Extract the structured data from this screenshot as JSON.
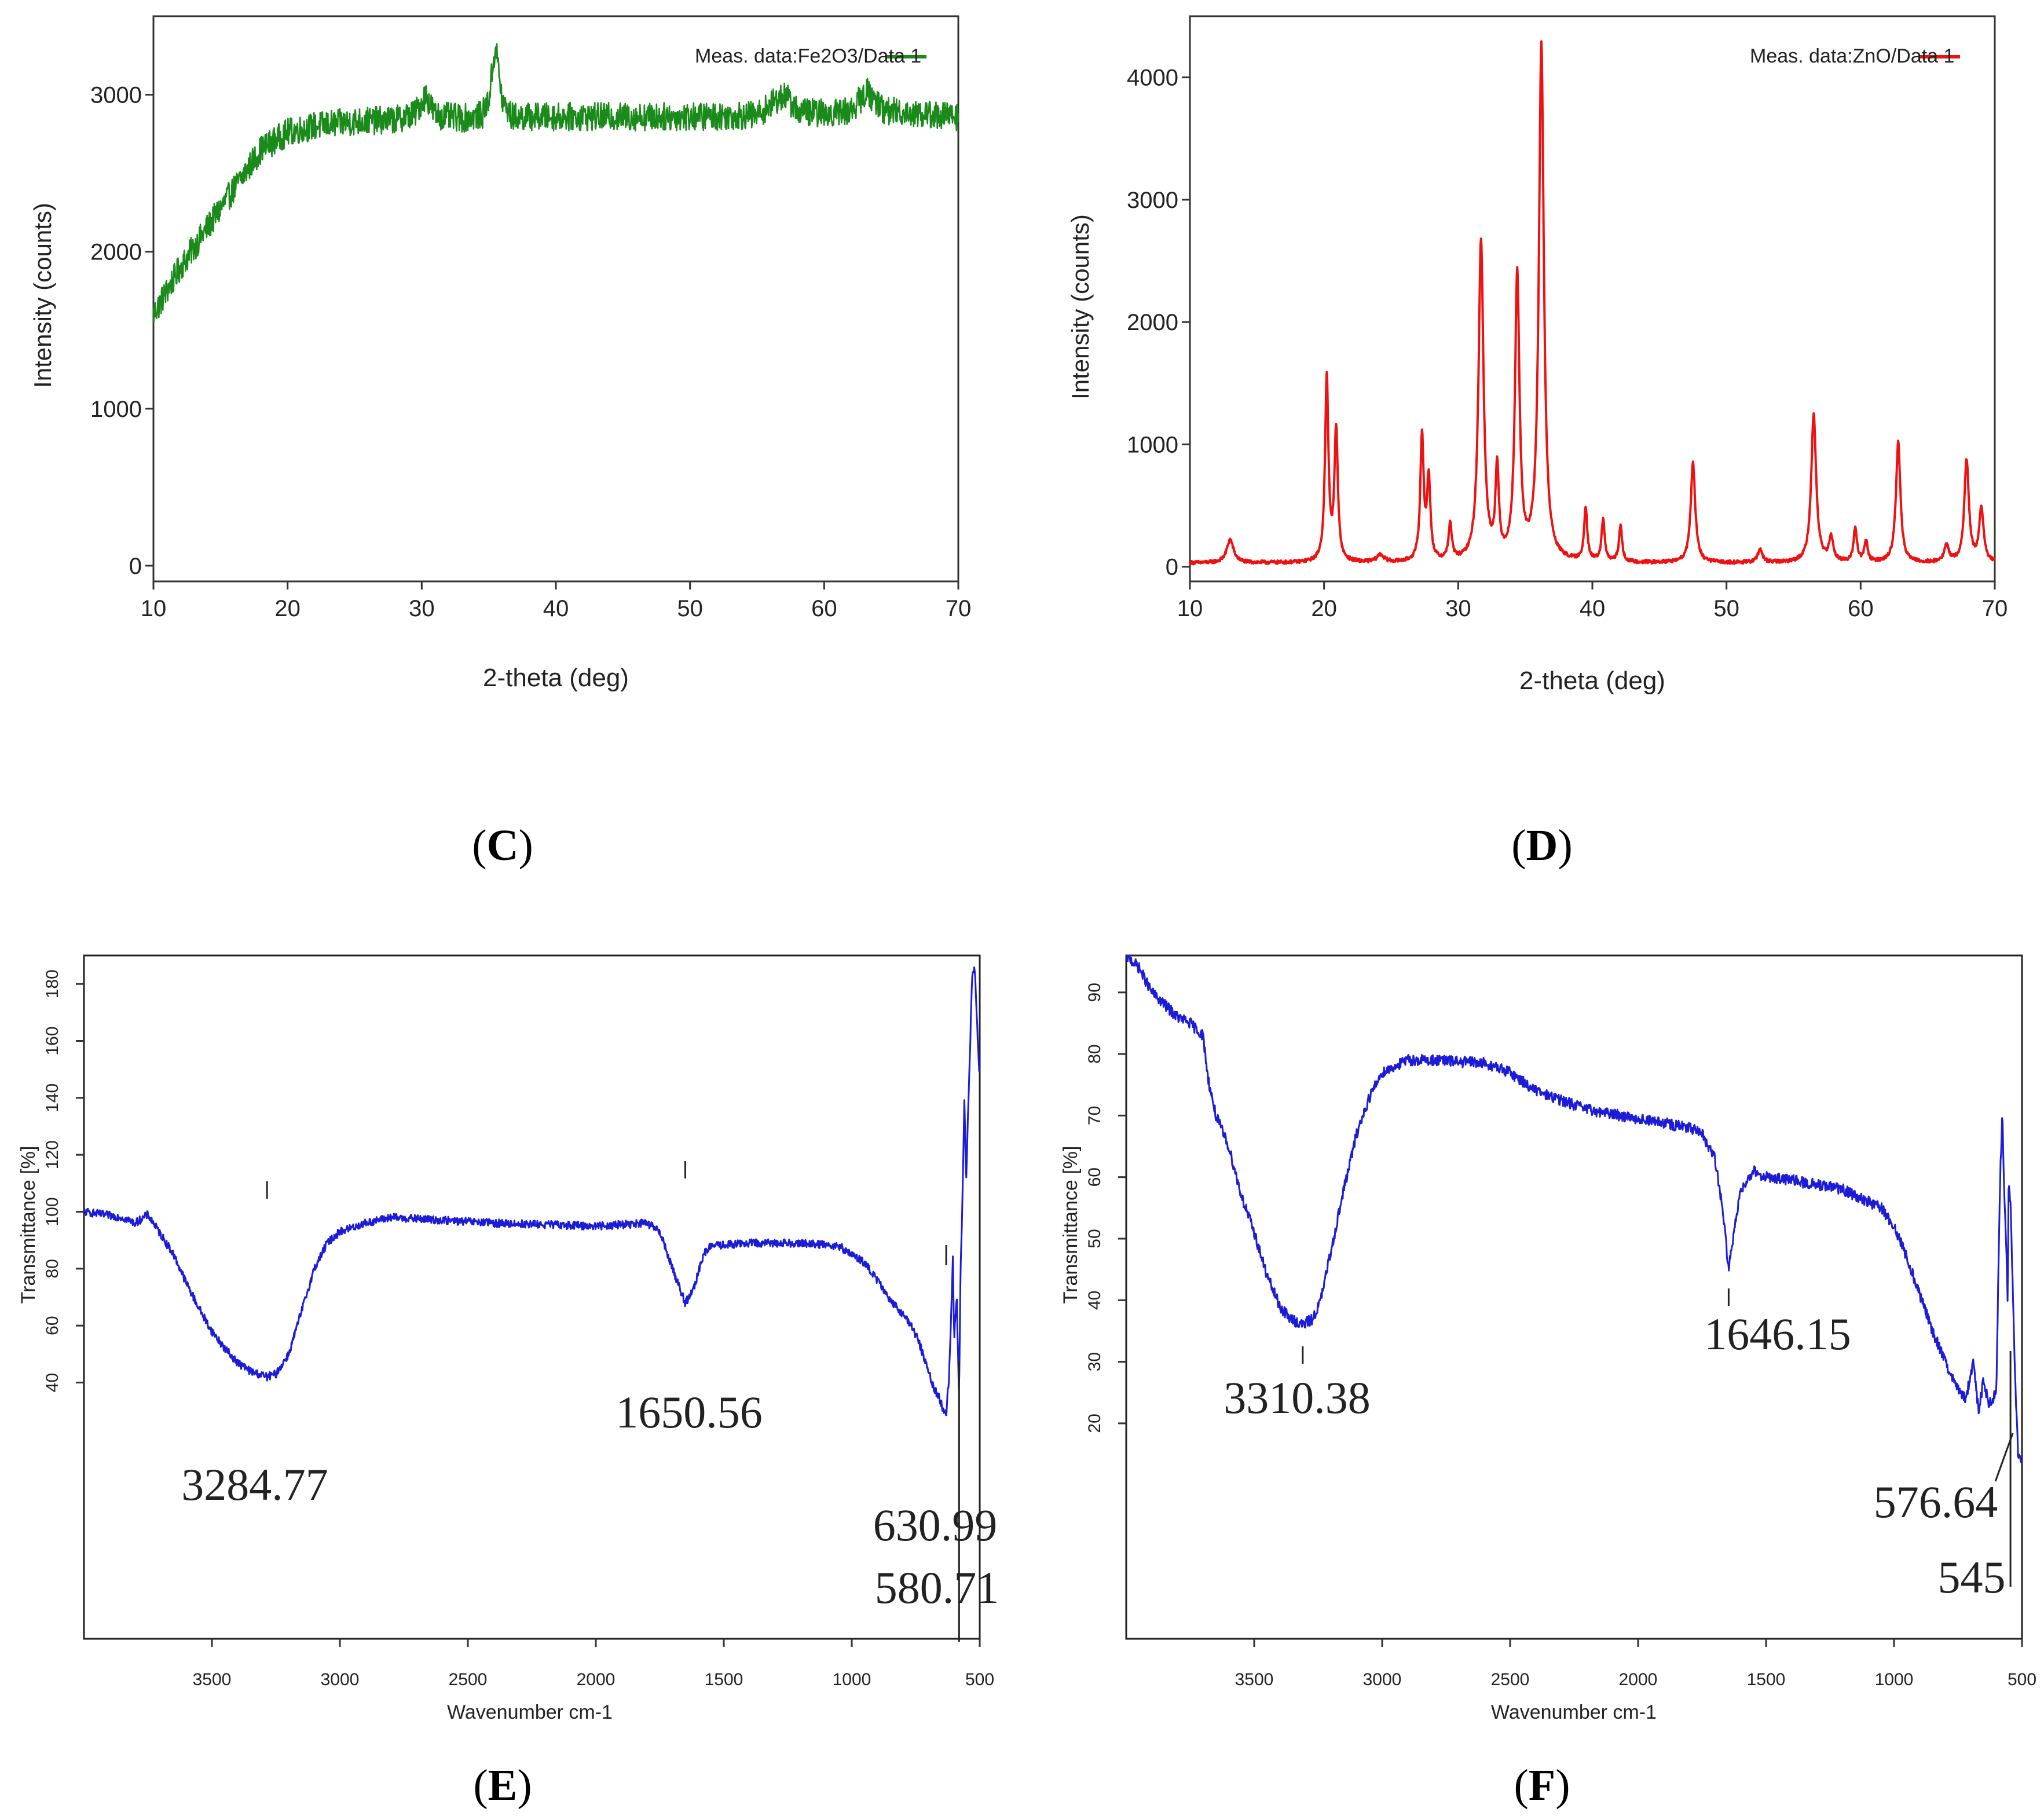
{
  "chart_data": [
    {
      "type": "line",
      "panel": "C",
      "legend": "Meas. data:Fe2O3/Data 1",
      "color": "#1a8a1a",
      "xlabel": "2-theta (deg)",
      "ylabel": "Intensity (counts)",
      "xlim": [
        10,
        70
      ],
      "ylim": [
        -100,
        3500
      ],
      "xticks": [
        10,
        20,
        30,
        40,
        50,
        60,
        70
      ],
      "yticks": [
        0,
        1000,
        2000,
        3000
      ],
      "points": [
        [
          10,
          1600
        ],
        [
          12,
          1900
        ],
        [
          14,
          2150
        ],
        [
          16,
          2400
        ],
        [
          18,
          2650
        ],
        [
          20,
          2760
        ],
        [
          22,
          2800
        ],
        [
          25,
          2830
        ],
        [
          28,
          2840
        ],
        [
          29.5,
          2880
        ],
        [
          30.3,
          3000
        ],
        [
          31,
          2870
        ],
        [
          33,
          2850
        ],
        [
          34.5,
          2870
        ],
        [
          35.0,
          2970
        ],
        [
          35.5,
          3320
        ],
        [
          36.0,
          2960
        ],
        [
          36.7,
          2860
        ],
        [
          40,
          2860
        ],
        [
          45,
          2860
        ],
        [
          50,
          2860
        ],
        [
          55,
          2870
        ],
        [
          57,
          3000
        ],
        [
          58,
          2900
        ],
        [
          60,
          2880
        ],
        [
          62,
          2900
        ],
        [
          63.2,
          3020
        ],
        [
          64.5,
          2900
        ],
        [
          67,
          2880
        ],
        [
          70,
          2860
        ]
      ],
      "noise": 90
    },
    {
      "type": "line",
      "panel": "D",
      "legend": "Meas. data:ZnO/Data 1",
      "color": "#ee1111",
      "xlabel": "2-theta (deg)",
      "ylabel": "Intensity (counts)",
      "xlim": [
        10,
        70
      ],
      "ylim": [
        -120,
        4500
      ],
      "xticks": [
        10,
        20,
        30,
        40,
        50,
        60,
        70
      ],
      "yticks": [
        0,
        1000,
        2000,
        3000,
        4000
      ],
      "baseline": 30,
      "peaks": [
        [
          13.0,
          190,
          0.3
        ],
        [
          20.2,
          1500,
          0.15
        ],
        [
          20.9,
          1080,
          0.15
        ],
        [
          24.2,
          60,
          0.3
        ],
        [
          27.3,
          1020,
          0.15
        ],
        [
          27.8,
          670,
          0.15
        ],
        [
          29.4,
          290,
          0.15
        ],
        [
          31.7,
          2620,
          0.22
        ],
        [
          32.9,
          720,
          0.15
        ],
        [
          34.4,
          2320,
          0.2
        ],
        [
          36.2,
          4220,
          0.22
        ],
        [
          39.5,
          440,
          0.14
        ],
        [
          40.8,
          340,
          0.14
        ],
        [
          42.1,
          290,
          0.14
        ],
        [
          47.5,
          820,
          0.2
        ],
        [
          52.5,
          110,
          0.2
        ],
        [
          56.5,
          1210,
          0.22
        ],
        [
          57.8,
          190,
          0.2
        ],
        [
          59.6,
          280,
          0.15
        ],
        [
          60.4,
          170,
          0.15
        ],
        [
          62.8,
          980,
          0.2
        ],
        [
          66.4,
          140,
          0.2
        ],
        [
          67.9,
          840,
          0.2
        ],
        [
          69.0,
          430,
          0.2
        ]
      ],
      "noise": 14
    },
    {
      "type": "line",
      "panel": "E",
      "color": "#1c1cd8",
      "xlabel": "Wavenumber cm-1",
      "ylabel": "Transmittance [%]",
      "xlim": [
        4000,
        500
      ],
      "ylim": [
        -50,
        190
      ],
      "xticks": [
        3500,
        3000,
        2500,
        2000,
        1500,
        1000,
        500
      ],
      "yticks": [
        40,
        60,
        80,
        100,
        120,
        140,
        160,
        180
      ],
      "points": [
        [
          4000,
          100
        ],
        [
          3850,
          98
        ],
        [
          3800,
          96
        ],
        [
          3750,
          99
        ],
        [
          3700,
          92
        ],
        [
          3650,
          85
        ],
        [
          3600,
          75
        ],
        [
          3550,
          66
        ],
        [
          3500,
          58
        ],
        [
          3450,
          52
        ],
        [
          3400,
          47
        ],
        [
          3350,
          44
        ],
        [
          3284.77,
          42
        ],
        [
          3250,
          43
        ],
        [
          3200,
          50
        ],
        [
          3150,
          65
        ],
        [
          3100,
          80
        ],
        [
          3050,
          89
        ],
        [
          3000,
          93
        ],
        [
          2900,
          96
        ],
        [
          2800,
          98
        ],
        [
          2600,
          97
        ],
        [
          2400,
          96
        ],
        [
          2200,
          95.5
        ],
        [
          2000,
          95
        ],
        [
          1800,
          96
        ],
        [
          1750,
          93
        ],
        [
          1700,
          80
        ],
        [
          1650.56,
          68
        ],
        [
          1620,
          72
        ],
        [
          1580,
          85
        ],
        [
          1550,
          88
        ],
        [
          1400,
          89
        ],
        [
          1200,
          89
        ],
        [
          1050,
          88
        ],
        [
          1000,
          85
        ],
        [
          950,
          82
        ],
        [
          900,
          76
        ],
        [
          860,
          70
        ],
        [
          820,
          66
        ],
        [
          780,
          62
        ],
        [
          740,
          55
        ],
        [
          700,
          44
        ],
        [
          680,
          38
        ],
        [
          660,
          35
        ],
        [
          645,
          31
        ],
        [
          630.99,
          29
        ],
        [
          620,
          42
        ],
        [
          612,
          62
        ],
        [
          605,
          85
        ],
        [
          600,
          55
        ],
        [
          590,
          70
        ],
        [
          580.71,
          35
        ],
        [
          575,
          80
        ],
        [
          568,
          102
        ],
        [
          560,
          140
        ],
        [
          553,
          110
        ],
        [
          547,
          130
        ],
        [
          540,
          150
        ],
        [
          530,
          182
        ],
        [
          520,
          186
        ],
        [
          510,
          165
        ],
        [
          505,
          155
        ],
        [
          500,
          148
        ]
      ],
      "annotations": [
        {
          "text": "3284.77",
          "x": 3284.77
        },
        {
          "text": "1650.56",
          "x": 1650.56
        },
        {
          "text": "630.99",
          "x": 630.99
        },
        {
          "text": "580.71",
          "x": 580.71
        }
      ],
      "noise": 1.4
    },
    {
      "type": "line",
      "panel": "F",
      "color": "#1c1cd8",
      "xlabel": "Wavenumber cm-1",
      "ylabel": "Transmittance [%]",
      "xlim": [
        4000,
        500
      ],
      "ylim": [
        -15,
        96
      ],
      "xticks": [
        3500,
        3000,
        2500,
        2000,
        1500,
        1000,
        500
      ],
      "yticks": [
        20,
        30,
        40,
        50,
        60,
        70,
        80,
        90
      ],
      "points": [
        [
          4000,
          96
        ],
        [
          3950,
          94
        ],
        [
          3900,
          90
        ],
        [
          3850,
          88
        ],
        [
          3800,
          86
        ],
        [
          3750,
          85
        ],
        [
          3700,
          83
        ],
        [
          3680,
          76
        ],
        [
          3650,
          70
        ],
        [
          3600,
          65
        ],
        [
          3550,
          57
        ],
        [
          3500,
          51
        ],
        [
          3450,
          44
        ],
        [
          3400,
          39
        ],
        [
          3360,
          37
        ],
        [
          3310.38,
          36
        ],
        [
          3270,
          37
        ],
        [
          3240,
          40
        ],
        [
          3200,
          48
        ],
        [
          3150,
          58
        ],
        [
          3100,
          67
        ],
        [
          3050,
          73
        ],
        [
          3000,
          77
        ],
        [
          2900,
          79
        ],
        [
          2800,
          79
        ],
        [
          2600,
          78.5
        ],
        [
          2500,
          77
        ],
        [
          2400,
          74
        ],
        [
          2200,
          71
        ],
        [
          2000,
          69.5
        ],
        [
          1800,
          68
        ],
        [
          1750,
          67
        ],
        [
          1700,
          63
        ],
        [
          1670,
          55
        ],
        [
          1646.15,
          45
        ],
        [
          1625,
          51
        ],
        [
          1600,
          58
        ],
        [
          1550,
          61
        ],
        [
          1500,
          60
        ],
        [
          1400,
          59.5
        ],
        [
          1200,
          58
        ],
        [
          1050,
          55
        ],
        [
          1000,
          52
        ],
        [
          950,
          47
        ],
        [
          900,
          41
        ],
        [
          850,
          35
        ],
        [
          800,
          30
        ],
        [
          760,
          26
        ],
        [
          720,
          24
        ],
        [
          690,
          30
        ],
        [
          670,
          22
        ],
        [
          650,
          27
        ],
        [
          630,
          23
        ],
        [
          600,
          25
        ],
        [
          590,
          50
        ],
        [
          583,
          63
        ],
        [
          576.64,
          71
        ],
        [
          570,
          58
        ],
        [
          562,
          50
        ],
        [
          556,
          40
        ],
        [
          552,
          60
        ],
        [
          545,
          56
        ],
        [
          535,
          40
        ],
        [
          525,
          25
        ],
        [
          515,
          15
        ],
        [
          505,
          14
        ],
        [
          500,
          14
        ]
      ],
      "annotations": [
        {
          "text": "3310.38",
          "x": 3310.38
        },
        {
          "text": "1646.15",
          "x": 1646.15
        },
        {
          "text": "576.64",
          "x": 576.64
        },
        {
          "text": "545",
          "x": 545
        }
      ],
      "noise": 0.9
    }
  ],
  "labels": {
    "c": "C",
    "d": "D",
    "e": "E",
    "f": "F"
  }
}
